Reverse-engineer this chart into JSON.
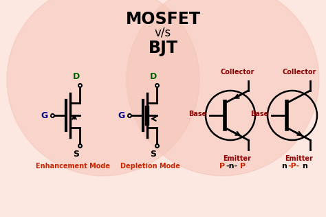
{
  "title_line1": "MOSFET",
  "title_line2": "v/s",
  "title_line3": "BJT",
  "bg_color": "#fce8e0",
  "left_circle_color": "#f5c5b8",
  "right_circle_color": "#f5c5b8",
  "title_color": "#000000",
  "enhancement_label": "Enhancement Mode",
  "depletion_label": "Depletion Mode",
  "collector_color": "#8b0000",
  "base_color": "#8b0000",
  "emitter_color": "#8b0000",
  "gate_color": "#00008b",
  "drain_color": "#006400",
  "source_color": "#000000",
  "mode_label_color": "#cc2200",
  "red_color": "#cc2200",
  "black_color": "#000000"
}
